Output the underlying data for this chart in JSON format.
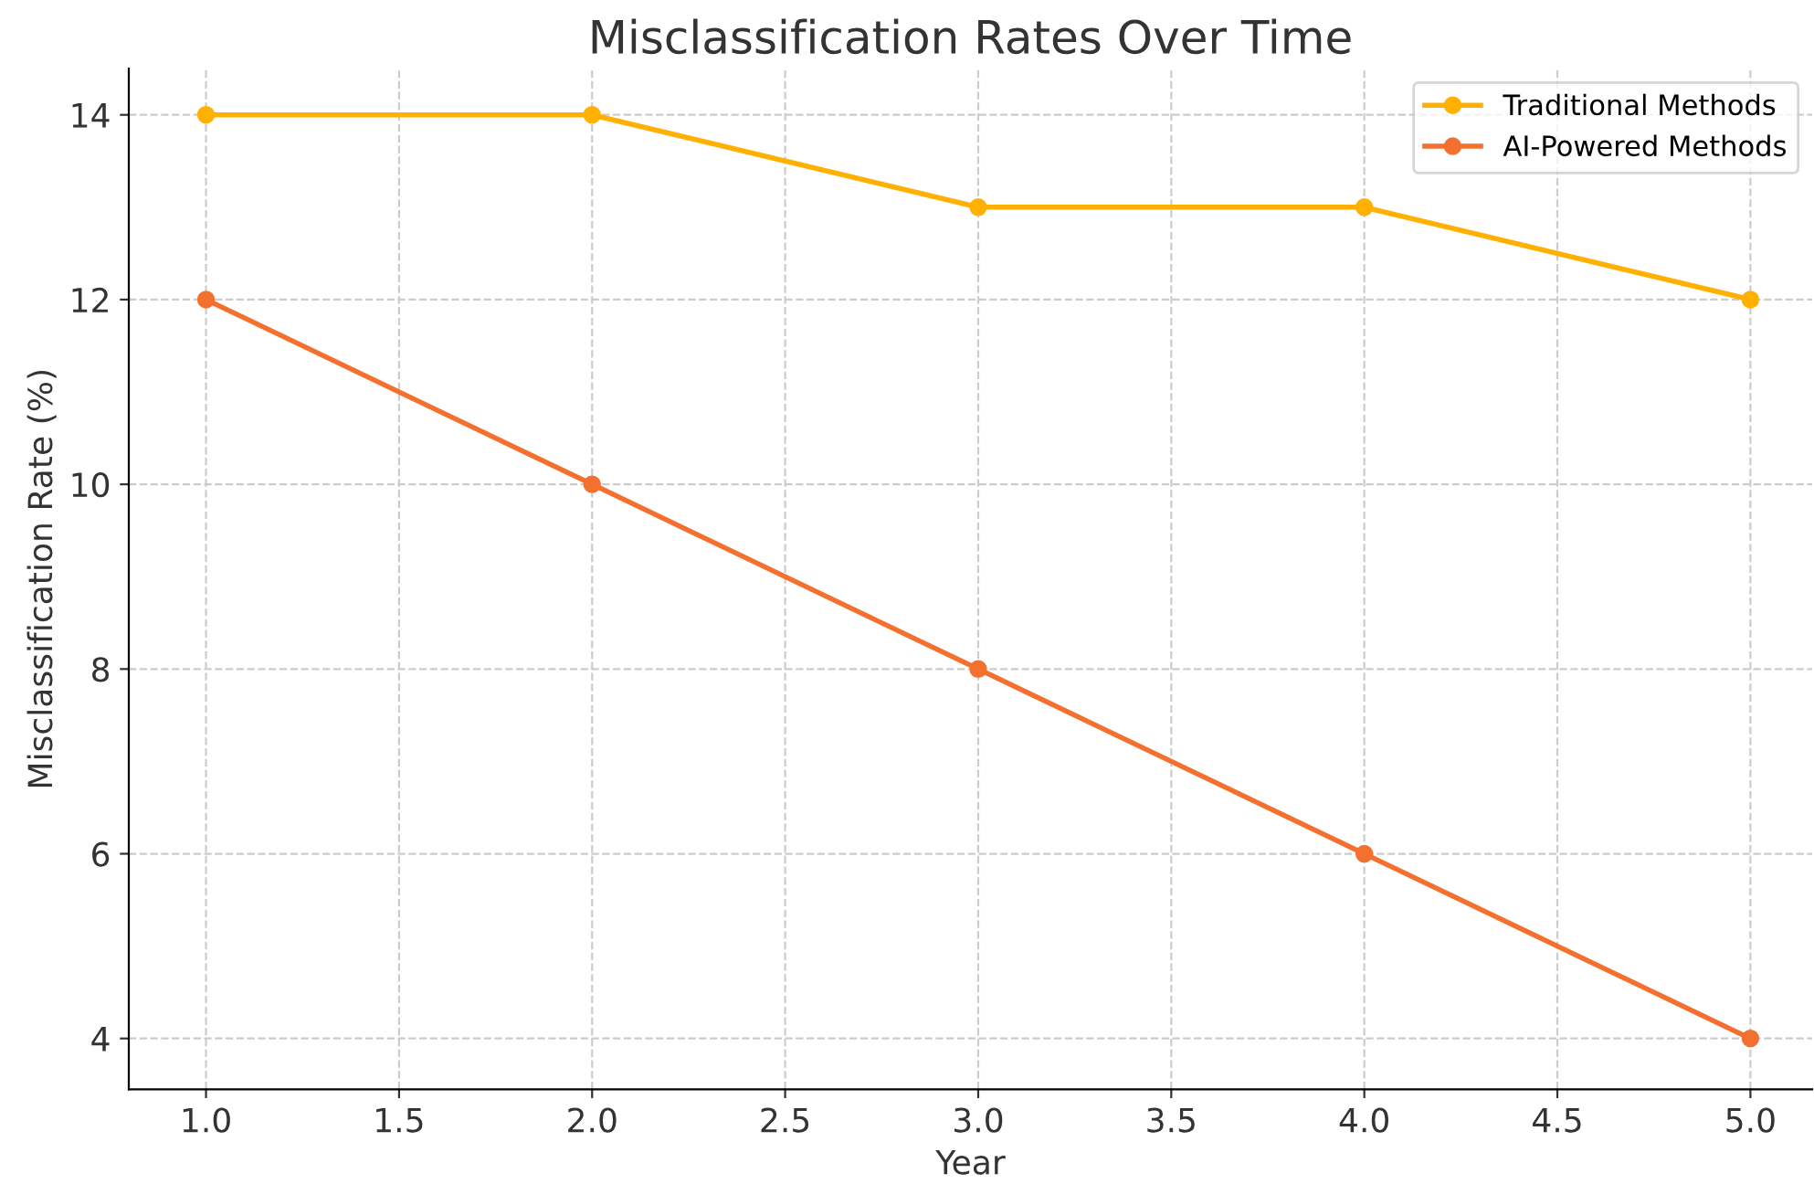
{
  "chart_data": {
    "type": "line",
    "title": "Misclassification Rates Over Time",
    "xlabel": "Year",
    "ylabel": "Misclassification Rate (%)",
    "x": [
      1.0,
      2.0,
      3.0,
      4.0,
      5.0
    ],
    "series": [
      {
        "name": "Traditional Methods",
        "color": "#ffb000",
        "values": [
          14,
          14,
          13,
          13,
          12
        ]
      },
      {
        "name": "AI-Powered Methods",
        "color": "#f4702f",
        "values": [
          12,
          10,
          8,
          6,
          4
        ]
      }
    ],
    "xlim": [
      0.8,
      5.16
    ],
    "ylim": [
      3.45,
      14.5
    ],
    "xticks": [
      {
        "value": 1.0,
        "label": "1.0"
      },
      {
        "value": 1.5,
        "label": "1.5"
      },
      {
        "value": 2.0,
        "label": "2.0"
      },
      {
        "value": 2.5,
        "label": "2.5"
      },
      {
        "value": 3.0,
        "label": "3.0"
      },
      {
        "value": 3.5,
        "label": "3.5"
      },
      {
        "value": 4.0,
        "label": "4.0"
      },
      {
        "value": 4.5,
        "label": "4.5"
      },
      {
        "value": 5.0,
        "label": "5.0"
      }
    ],
    "yticks": [
      4,
      6,
      8,
      10,
      12,
      14
    ],
    "grid": true,
    "legend": "top right",
    "marker": "circle",
    "line_style": "solid"
  }
}
